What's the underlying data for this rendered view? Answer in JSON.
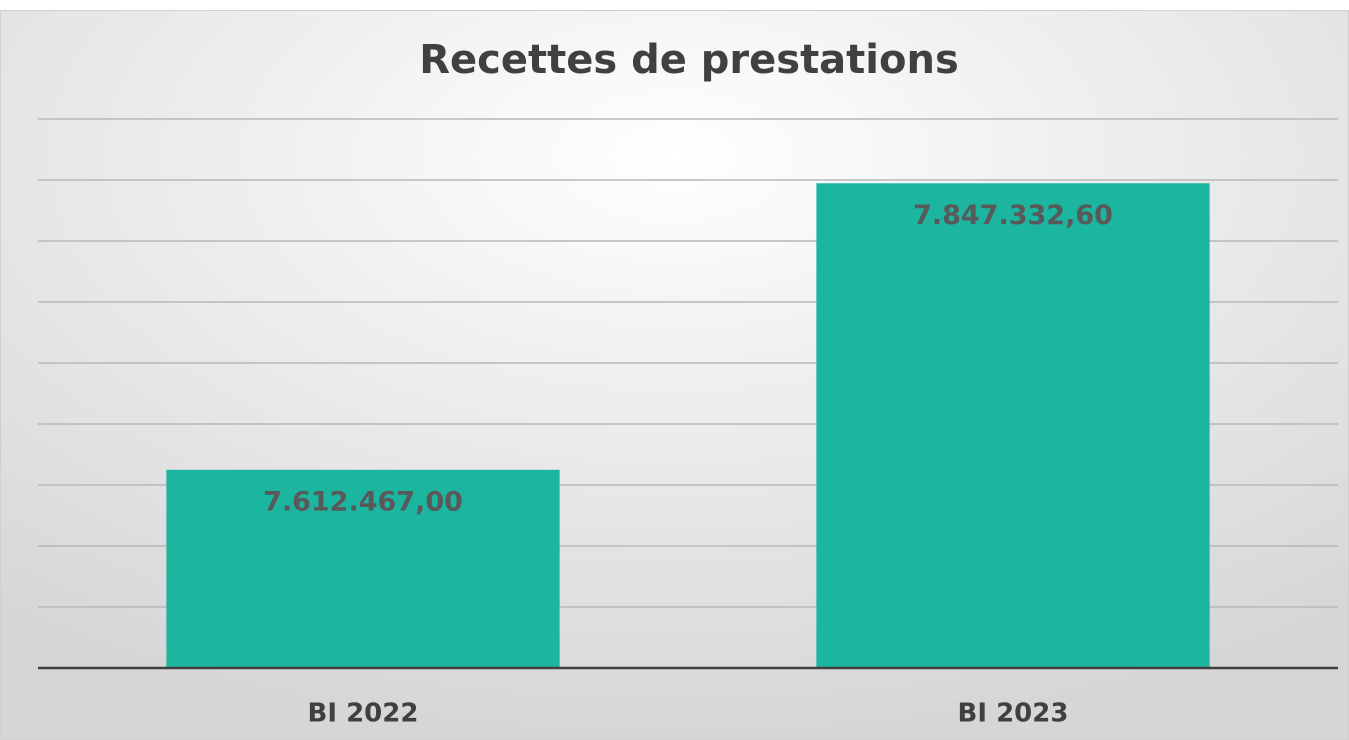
{
  "chart_data": {
    "type": "bar",
    "title": "Recettes de prestations",
    "categories": [
      "BI 2022",
      "BI 2023"
    ],
    "values": [
      7612467.0,
      7847332.6
    ],
    "value_labels": [
      "7.612.467,00",
      "7.847.332,60"
    ],
    "color": "#1bb5a0",
    "ylim": [
      7450000,
      7900000
    ],
    "yticks": [
      7450000,
      7500000,
      7550000,
      7600000,
      7650000,
      7700000,
      7750000,
      7800000,
      7850000,
      7900000
    ],
    "grid": true,
    "ytick_labels": false
  }
}
